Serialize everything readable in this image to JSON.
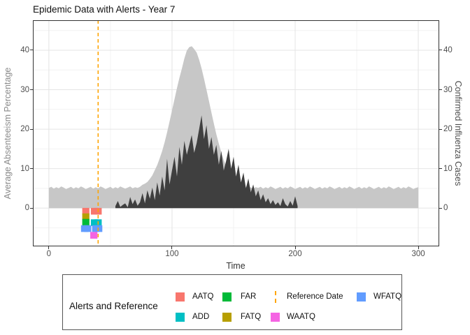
{
  "chart_data": {
    "type": "area",
    "title": "Epidemic Data with Alerts - Year 7",
    "xlabel": "Time",
    "ylabel_left": "Average Absenteeism Percentage",
    "ylabel_right": "Confirmed Influenza Cases",
    "x_ticks": [
      0,
      100,
      200,
      300
    ],
    "y_ticks_left": [
      0,
      10,
      20,
      30,
      40
    ],
    "y_ticks_right": [
      0,
      10,
      20,
      30,
      40
    ],
    "xlim": [
      -13,
      317
    ],
    "ylim": [
      -9.7,
      47.6
    ],
    "grid": true,
    "grid_major_x": [
      0,
      100,
      200,
      300
    ],
    "grid_minor_x": [
      50,
      150,
      250
    ],
    "grid_major_y": [
      0,
      10,
      20,
      30,
      40
    ],
    "grid_minor_y": [
      -5,
      5,
      15,
      25,
      35,
      45
    ],
    "reference_date": 40,
    "colors": {
      "reference": "#FFA500",
      "absenteeism_area": "#C7C7C7",
      "influenza_area": "#3F3F3F",
      "grid_major": "#E4E4E4",
      "grid_minor": "#F2F2F2",
      "panel_border": "#333333"
    },
    "series": [
      {
        "name": "average-absenteeism-percentage",
        "color": "#C7C7C7",
        "x_start": 0,
        "x_step": 2,
        "values": [
          5.1,
          5.4,
          4.9,
          5.3,
          5.0,
          5.5,
          5.2,
          4.8,
          5.1,
          5.4,
          4.9,
          5.3,
          5.0,
          5.5,
          5.2,
          4.8,
          5.1,
          5.4,
          4.9,
          5.3,
          5.0,
          5.5,
          5.2,
          4.8,
          5.1,
          5.4,
          4.9,
          5.3,
          5.0,
          5.5,
          5.2,
          4.9,
          5.2,
          5.5,
          5.0,
          5.3,
          5.1,
          5.4,
          5.9,
          6.2,
          6.6,
          7.4,
          8.3,
          9.6,
          10.9,
          12.6,
          14.5,
          16.7,
          19.2,
          21.9,
          24.7,
          27.6,
          30.4,
          33.0,
          35.3,
          37.9,
          39.9,
          40.8,
          41.0,
          40.3,
          39.4,
          37.6,
          35.4,
          32.8,
          30.0,
          27.1,
          24.2,
          21.4,
          18.7,
          16.3,
          14.1,
          12.2,
          10.6,
          9.2,
          8.1,
          7.3,
          6.6,
          6.1,
          5.8,
          5.6,
          5.4,
          5.5,
          5.2,
          5.0,
          5.3,
          5.1,
          5.4,
          4.9,
          5.3,
          5.0,
          5.5,
          5.2,
          4.8,
          5.1,
          5.4,
          4.9,
          5.3,
          5.0,
          5.5,
          5.2,
          4.8,
          5.1,
          5.4,
          4.9,
          5.3,
          5.0,
          5.5,
          5.2,
          4.8,
          5.1,
          5.4,
          4.9,
          5.3,
          5.0,
          5.5,
          5.2,
          4.8,
          5.1,
          5.4,
          4.9,
          5.3,
          5.0,
          5.5,
          5.2,
          4.8,
          5.1,
          5.4,
          4.9,
          5.3,
          5.0,
          5.5,
          5.2,
          4.8,
          5.1,
          5.4,
          4.9,
          5.3,
          5.0,
          5.5,
          5.2,
          4.8,
          5.1,
          5.4,
          4.9,
          5.3,
          5.0,
          5.5,
          5.2,
          4.8,
          5.1,
          5.3
        ]
      },
      {
        "name": "confirmed-influenza-cases",
        "color": "#3F3F3F",
        "x_start": 54,
        "x_step": 2,
        "values": [
          0.5,
          1.8,
          0.3,
          0.8,
          1.2,
          0.2,
          2.8,
          1.0,
          2.2,
          0.6,
          1.5,
          3.8,
          1.2,
          4.5,
          2.4,
          5.2,
          2.0,
          6.5,
          3.2,
          8.0,
          4.5,
          12.5,
          6.0,
          9.5,
          13.0,
          8.0,
          15.5,
          11.0,
          17.0,
          13.5,
          16.0,
          18.5,
          14.0,
          16.5,
          20.0,
          23.5,
          17.5,
          21.0,
          15.0,
          18.0,
          13.5,
          16.0,
          11.0,
          14.5,
          9.5,
          12.0,
          15.0,
          10.0,
          13.0,
          8.0,
          11.0,
          6.5,
          9.0,
          5.0,
          7.5,
          4.0,
          6.0,
          3.0,
          4.5,
          2.0,
          3.5,
          1.5,
          2.5,
          1.0,
          2.0,
          0.8,
          1.5,
          0.5,
          2.5,
          1.0,
          0.4,
          1.8,
          0.6,
          3.0,
          0.5
        ]
      }
    ],
    "alerts": {
      "lane_height": 1.7,
      "half_width": 2.9,
      "types": [
        {
          "label": "AATQ",
          "color": "#F8766D",
          "lane": -0.8,
          "times": [
            30,
            37,
            40
          ]
        },
        {
          "label": "FATQ",
          "color": "#B79F00",
          "lane": -2.2,
          "times": [
            30
          ]
        },
        {
          "label": "FAR",
          "color": "#00BA38",
          "lane": -3.6,
          "times": [
            30
          ]
        },
        {
          "label": "ADD",
          "color": "#00BFC4",
          "lane": -3.7,
          "times": [
            37,
            40
          ]
        },
        {
          "label": "WFATQ",
          "color": "#619CFF",
          "lane": -5.2,
          "times": [
            29,
            31.5,
            38,
            40.5
          ]
        },
        {
          "label": "WAATQ",
          "color": "#F564E3",
          "lane": -6.9,
          "times": [
            36.5
          ]
        }
      ]
    },
    "legend": {
      "title": "Alerts and Reference",
      "entries": [
        {
          "label": "AATQ",
          "color": "#F8766D",
          "row": 0,
          "col": 0,
          "key": "square"
        },
        {
          "label": "ADD",
          "color": "#00BFC4",
          "row": 1,
          "col": 0,
          "key": "square"
        },
        {
          "label": "FAR",
          "color": "#00BA38",
          "row": 0,
          "col": 1,
          "key": "square"
        },
        {
          "label": "FATQ",
          "color": "#B79F00",
          "row": 1,
          "col": 1,
          "key": "square"
        },
        {
          "label": "Reference Date",
          "color": "#FFA500",
          "row": 0,
          "col": 2,
          "key": "dashed-line"
        },
        {
          "label": "WAATQ",
          "color": "#F564E3",
          "row": 1,
          "col": 2,
          "key": "square"
        },
        {
          "label": "WFATQ",
          "color": "#619CFF",
          "row": 0,
          "col": 3,
          "key": "square"
        }
      ]
    }
  }
}
